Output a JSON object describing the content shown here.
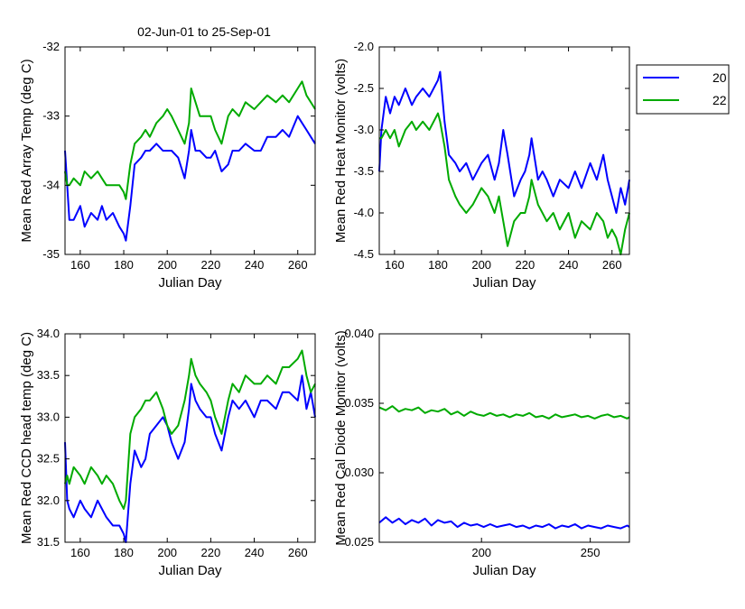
{
  "figure": {
    "title": "02-Jun-01 to 25-Sep-01",
    "legend": {
      "placement": "outside right of top-right panel",
      "entries": [
        {
          "label": "20",
          "color": "#0000ff"
        },
        {
          "label": "22",
          "color": "#00aa00"
        }
      ]
    }
  },
  "chart_data": [
    {
      "type": "line",
      "panel": "top-left",
      "title": "02-Jun-01 to 25-Sep-01",
      "xlabel": "Julian Day",
      "ylabel": "Mean Red Array Temp (deg C)",
      "xlim": [
        153,
        268
      ],
      "ylim": [
        -35,
        -32
      ],
      "xticks": [
        160,
        180,
        200,
        220,
        240,
        260
      ],
      "yticks": [
        -35,
        -34,
        -33,
        -32
      ],
      "ytick_labels": [
        "-35",
        "-34",
        "-33",
        "-32"
      ],
      "grid": false,
      "series": [
        {
          "name": "20",
          "color": "#0000ff",
          "x": [
            153,
            154,
            155,
            157,
            160,
            162,
            165,
            168,
            170,
            172,
            175,
            178,
            180,
            181,
            183,
            185,
            188,
            190,
            192,
            195,
            198,
            200,
            202,
            205,
            208,
            210,
            211,
            213,
            215,
            218,
            220,
            222,
            225,
            228,
            230,
            233,
            236,
            240,
            243,
            246,
            250,
            253,
            256,
            260,
            262,
            264,
            266,
            268
          ],
          "y": [
            -33.5,
            -34.0,
            -34.5,
            -34.5,
            -34.3,
            -34.6,
            -34.4,
            -34.5,
            -34.3,
            -34.5,
            -34.4,
            -34.6,
            -34.7,
            -34.8,
            -34.3,
            -33.7,
            -33.6,
            -33.5,
            -33.5,
            -33.4,
            -33.5,
            -33.5,
            -33.5,
            -33.6,
            -33.9,
            -33.5,
            -33.2,
            -33.5,
            -33.5,
            -33.6,
            -33.6,
            -33.5,
            -33.8,
            -33.7,
            -33.5,
            -33.5,
            -33.4,
            -33.5,
            -33.5,
            -33.3,
            -33.3,
            -33.2,
            -33.3,
            -33.0,
            -33.1,
            -33.2,
            -33.3,
            -33.4
          ]
        },
        {
          "name": "22",
          "color": "#00aa00",
          "x": [
            153,
            154,
            155,
            157,
            160,
            162,
            165,
            168,
            170,
            172,
            175,
            178,
            180,
            181,
            183,
            185,
            188,
            190,
            192,
            195,
            198,
            200,
            202,
            205,
            208,
            210,
            211,
            213,
            215,
            218,
            220,
            222,
            225,
            228,
            230,
            233,
            236,
            240,
            243,
            246,
            250,
            253,
            256,
            260,
            262,
            264,
            266,
            268
          ],
          "y": [
            -33.8,
            -34.0,
            -34.0,
            -33.9,
            -34.0,
            -33.8,
            -33.9,
            -33.8,
            -33.9,
            -34.0,
            -34.0,
            -34.0,
            -34.1,
            -34.2,
            -33.7,
            -33.4,
            -33.3,
            -33.2,
            -33.3,
            -33.1,
            -33.0,
            -32.9,
            -33.0,
            -33.2,
            -33.4,
            -33.1,
            -32.6,
            -32.8,
            -33.0,
            -33.0,
            -33.0,
            -33.2,
            -33.4,
            -33.0,
            -32.9,
            -33.0,
            -32.8,
            -32.9,
            -32.8,
            -32.7,
            -32.8,
            -32.7,
            -32.8,
            -32.6,
            -32.5,
            -32.7,
            -32.8,
            -32.9
          ]
        }
      ]
    },
    {
      "type": "line",
      "panel": "top-right",
      "xlabel": "Julian Day",
      "ylabel": "Mean Red Heat Monitor (volts)",
      "xlim": [
        153,
        268
      ],
      "ylim": [
        -4.5,
        -2.0
      ],
      "xticks": [
        160,
        180,
        200,
        220,
        240,
        260
      ],
      "yticks": [
        -4.5,
        -4.0,
        -3.5,
        -3.0,
        -2.5,
        -2.0
      ],
      "ytick_labels": [
        "-4.5",
        "-4.0",
        "-3.5",
        "-3.0",
        "-2.5",
        "-2.0"
      ],
      "grid": false,
      "series": [
        {
          "name": "20",
          "color": "#0000ff",
          "x": [
            153,
            154,
            156,
            158,
            160,
            162,
            165,
            168,
            170,
            173,
            176,
            178,
            180,
            181,
            183,
            185,
            188,
            190,
            193,
            196,
            200,
            203,
            206,
            208,
            210,
            212,
            215,
            218,
            220,
            222,
            223,
            226,
            228,
            230,
            233,
            236,
            240,
            243,
            246,
            250,
            253,
            256,
            258,
            260,
            262,
            264,
            266,
            268
          ],
          "y": [
            -3.5,
            -3.0,
            -2.6,
            -2.8,
            -2.6,
            -2.7,
            -2.5,
            -2.7,
            -2.6,
            -2.5,
            -2.6,
            -2.5,
            -2.4,
            -2.3,
            -2.9,
            -3.3,
            -3.4,
            -3.5,
            -3.4,
            -3.6,
            -3.4,
            -3.3,
            -3.6,
            -3.4,
            -3.0,
            -3.3,
            -3.8,
            -3.6,
            -3.5,
            -3.3,
            -3.1,
            -3.6,
            -3.5,
            -3.6,
            -3.8,
            -3.6,
            -3.7,
            -3.5,
            -3.7,
            -3.4,
            -3.6,
            -3.3,
            -3.6,
            -3.8,
            -4.0,
            -3.7,
            -3.9,
            -3.6
          ]
        },
        {
          "name": "22",
          "color": "#00aa00",
          "x": [
            153,
            154,
            156,
            158,
            160,
            162,
            165,
            168,
            170,
            173,
            176,
            178,
            180,
            181,
            183,
            185,
            188,
            190,
            193,
            196,
            200,
            203,
            206,
            208,
            210,
            212,
            215,
            218,
            220,
            222,
            223,
            226,
            228,
            230,
            233,
            236,
            240,
            243,
            246,
            250,
            253,
            256,
            258,
            260,
            262,
            264,
            266,
            268
          ],
          "y": [
            -3.1,
            -3.1,
            -3.0,
            -3.1,
            -3.0,
            -3.2,
            -3.0,
            -2.9,
            -3.0,
            -2.9,
            -3.0,
            -2.9,
            -2.8,
            -2.9,
            -3.2,
            -3.6,
            -3.8,
            -3.9,
            -4.0,
            -3.9,
            -3.7,
            -3.8,
            -4.0,
            -3.8,
            -4.1,
            -4.4,
            -4.1,
            -4.0,
            -4.0,
            -3.8,
            -3.6,
            -3.9,
            -4.0,
            -4.1,
            -4.0,
            -4.2,
            -4.0,
            -4.3,
            -4.1,
            -4.2,
            -4.0,
            -4.1,
            -4.3,
            -4.2,
            -4.3,
            -4.5,
            -4.2,
            -4.0
          ]
        }
      ]
    },
    {
      "type": "line",
      "panel": "bottom-left",
      "xlabel": "Julian Day",
      "ylabel": "Mean Red CCD head temp (deg C)",
      "xlim": [
        153,
        268
      ],
      "ylim": [
        31.5,
        34.0
      ],
      "xticks": [
        160,
        180,
        200,
        220,
        240,
        260
      ],
      "yticks": [
        31.5,
        32.0,
        32.5,
        33.0,
        33.5,
        34.0
      ],
      "ytick_labels": [
        "31.5",
        "32.0",
        "32.5",
        "33.0",
        "33.5",
        "34.0"
      ],
      "grid": false,
      "series": [
        {
          "name": "20",
          "color": "#0000ff",
          "x": [
            153,
            154,
            155,
            157,
            160,
            162,
            165,
            168,
            170,
            172,
            175,
            178,
            180,
            181,
            183,
            185,
            188,
            190,
            192,
            195,
            198,
            200,
            202,
            205,
            208,
            210,
            211,
            213,
            215,
            218,
            220,
            222,
            225,
            228,
            230,
            233,
            236,
            240,
            243,
            246,
            250,
            253,
            256,
            260,
            262,
            264,
            266,
            268
          ],
          "y": [
            32.7,
            32.0,
            31.9,
            31.8,
            32.0,
            31.9,
            31.8,
            32.0,
            31.9,
            31.8,
            31.7,
            31.7,
            31.6,
            31.5,
            32.2,
            32.6,
            32.4,
            32.5,
            32.8,
            32.9,
            33.0,
            32.9,
            32.7,
            32.5,
            32.7,
            33.1,
            33.4,
            33.2,
            33.1,
            33.0,
            33.0,
            32.8,
            32.6,
            33.0,
            33.2,
            33.1,
            33.2,
            33.0,
            33.2,
            33.2,
            33.1,
            33.3,
            33.3,
            33.2,
            33.5,
            33.1,
            33.3,
            33.0
          ]
        },
        {
          "name": "22",
          "color": "#00aa00",
          "x": [
            153,
            154,
            155,
            157,
            160,
            162,
            165,
            168,
            170,
            172,
            175,
            178,
            180,
            181,
            183,
            185,
            188,
            190,
            192,
            195,
            198,
            200,
            202,
            205,
            208,
            210,
            211,
            213,
            215,
            218,
            220,
            222,
            225,
            228,
            230,
            233,
            236,
            240,
            243,
            246,
            250,
            253,
            256,
            260,
            262,
            264,
            266,
            268
          ],
          "y": [
            32.2,
            32.3,
            32.2,
            32.4,
            32.3,
            32.2,
            32.4,
            32.3,
            32.2,
            32.3,
            32.2,
            32.0,
            31.9,
            32.0,
            32.8,
            33.0,
            33.1,
            33.2,
            33.2,
            33.3,
            33.1,
            32.9,
            32.8,
            32.9,
            33.2,
            33.5,
            33.7,
            33.5,
            33.4,
            33.3,
            33.2,
            33.0,
            32.8,
            33.2,
            33.4,
            33.3,
            33.5,
            33.4,
            33.4,
            33.5,
            33.4,
            33.6,
            33.6,
            33.7,
            33.8,
            33.5,
            33.3,
            33.4
          ]
        }
      ]
    },
    {
      "type": "line",
      "panel": "bottom-right",
      "xlabel": "Julian Day",
      "ylabel": "Mean Red Cal Diode Monitor (volts)",
      "xlim": [
        153,
        268
      ],
      "ylim": [
        0.025,
        0.04
      ],
      "xticks": [
        200,
        250
      ],
      "yticks": [
        0.025,
        0.03,
        0.035,
        0.04
      ],
      "ytick_labels": [
        "0.025",
        "0.030",
        "0.035",
        "0.040"
      ],
      "grid": false,
      "series": [
        {
          "name": "20",
          "color": "#0000ff",
          "x": [
            153,
            156,
            159,
            162,
            165,
            168,
            171,
            174,
            177,
            180,
            183,
            186,
            189,
            192,
            195,
            198,
            201,
            204,
            207,
            210,
            213,
            216,
            219,
            222,
            225,
            228,
            231,
            234,
            237,
            240,
            243,
            246,
            249,
            252,
            255,
            258,
            261,
            264,
            267,
            268
          ],
          "y": [
            0.0264,
            0.0268,
            0.0264,
            0.0267,
            0.0263,
            0.0266,
            0.0264,
            0.0267,
            0.0262,
            0.0266,
            0.0264,
            0.0265,
            0.0261,
            0.0264,
            0.0262,
            0.0263,
            0.0261,
            0.0263,
            0.0261,
            0.0262,
            0.0263,
            0.0261,
            0.0262,
            0.026,
            0.0262,
            0.0261,
            0.0263,
            0.026,
            0.0262,
            0.0261,
            0.0263,
            0.026,
            0.0262,
            0.0261,
            0.026,
            0.0262,
            0.0261,
            0.026,
            0.0262,
            0.0261
          ]
        },
        {
          "name": "22",
          "color": "#00aa00",
          "x": [
            153,
            156,
            159,
            162,
            165,
            168,
            171,
            174,
            177,
            180,
            183,
            186,
            189,
            192,
            195,
            198,
            201,
            204,
            207,
            210,
            213,
            216,
            219,
            222,
            225,
            228,
            231,
            234,
            237,
            240,
            243,
            246,
            249,
            252,
            255,
            258,
            261,
            264,
            267,
            268
          ],
          "y": [
            0.0347,
            0.0345,
            0.0348,
            0.0344,
            0.0346,
            0.0345,
            0.0347,
            0.0343,
            0.0345,
            0.0344,
            0.0346,
            0.0342,
            0.0344,
            0.0341,
            0.0344,
            0.0342,
            0.0341,
            0.0343,
            0.0341,
            0.0342,
            0.034,
            0.0342,
            0.0341,
            0.0343,
            0.034,
            0.0341,
            0.0339,
            0.0342,
            0.034,
            0.0341,
            0.0342,
            0.034,
            0.0341,
            0.0339,
            0.0341,
            0.0342,
            0.034,
            0.0341,
            0.0339,
            0.034
          ]
        }
      ]
    }
  ]
}
